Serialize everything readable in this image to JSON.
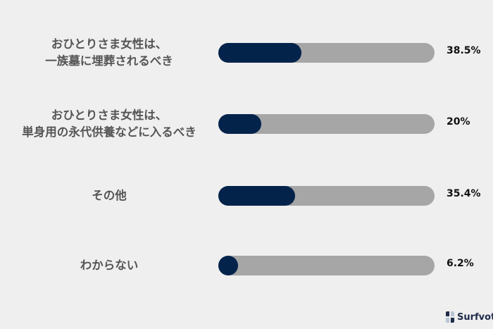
{
  "chart_data": {
    "type": "bar",
    "orientation": "horizontal",
    "categories": [
      [
        "おひとりさま女性は、",
        "一族墓に埋葬されるべき"
      ],
      [
        "おひとりさま女性は、",
        "単身用の永代供養などに入るべき"
      ],
      [
        "その他"
      ],
      [
        "わからない"
      ]
    ],
    "values": [
      38.5,
      20,
      35.4,
      6.2
    ],
    "value_labels": [
      "38.5%",
      "20%",
      "35.4%",
      "6.2%"
    ],
    "xlim": [
      0,
      100
    ],
    "grid": false,
    "colors": {
      "fill": "#03234b",
      "track": "#a6a6a6",
      "background": "#efefef"
    }
  },
  "branding": {
    "logo_text": "Surfvote"
  }
}
